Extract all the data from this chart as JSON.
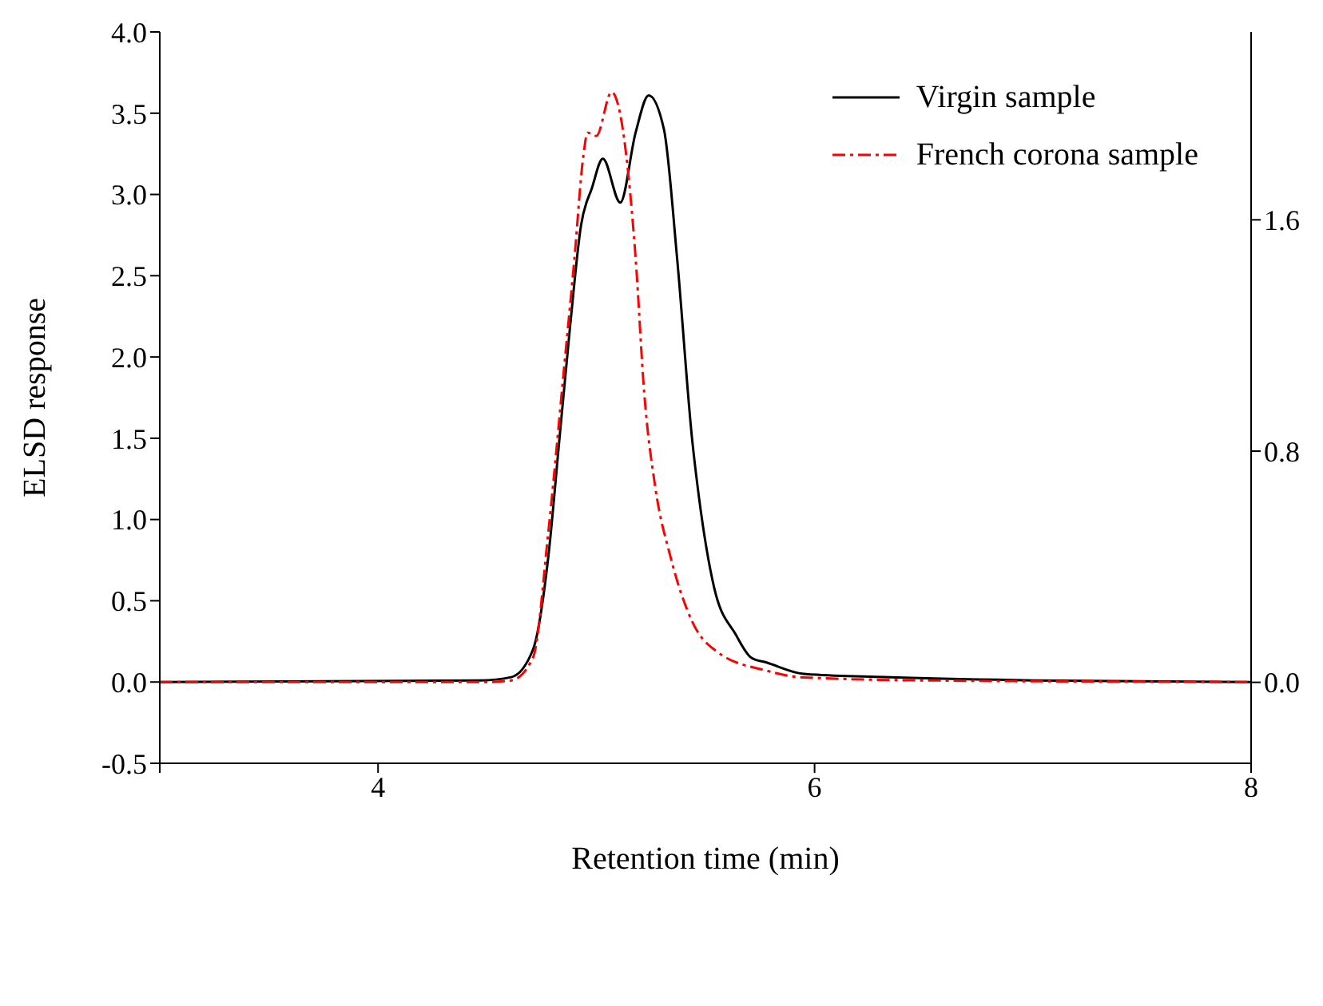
{
  "chart_data": {
    "type": "line",
    "xlabel": "Retention time (min)",
    "ylabel": "ELSD response",
    "x": [
      3,
      4.47,
      4.61,
      4.71,
      4.78,
      4.83,
      4.88,
      4.93,
      4.98,
      5.03,
      5.11,
      5.18,
      5.24,
      5.31,
      5.37,
      5.44,
      5.47,
      5.54,
      5.64,
      5.71,
      5.78,
      5.95,
      6.32,
      7,
      8
    ],
    "series": [
      {
        "name": "Virgin sample",
        "color": "#000000",
        "line_style": "solid",
        "values": [
          0,
          0.01,
          0.03,
          0.2,
          0.77,
          1.48,
          2.19,
          2.81,
          3.04,
          3.22,
          2.95,
          3.38,
          3.61,
          3.4,
          2.61,
          1.48,
          1.14,
          0.58,
          0.29,
          0.15,
          0.12,
          0.05,
          0.03,
          0.01,
          0
        ]
      },
      {
        "name": "French corona sample",
        "color": "#ff0000",
        "line_style": "dashed",
        "x": [
          3,
          4.5,
          4.61,
          4.71,
          4.78,
          4.85,
          4.9,
          4.94,
          4.96,
          5.0,
          5.07,
          5.11,
          5.18,
          5.22,
          5.27,
          5.34,
          5.44,
          5.56,
          5.78,
          5.93,
          6.5,
          8
        ],
        "values": [
          0,
          0,
          0.01,
          0.15,
          0.92,
          1.9,
          2.61,
          3.23,
          3.38,
          3.36,
          3.63,
          3.49,
          2.61,
          1.77,
          1.2,
          0.77,
          0.37,
          0.18,
          0.07,
          0.03,
          0.01,
          0
        ]
      }
    ],
    "xlim": [
      3,
      8
    ],
    "xticks": [
      {
        "value": 3,
        "label": null
      },
      4,
      6,
      8
    ],
    "ylim": [
      -0.5,
      4.0
    ],
    "yticks": [
      -0.5,
      {
        "value": 0,
        "label": "0.0"
      },
      0.5,
      {
        "value": 1,
        "label": "1.0"
      },
      1.5,
      {
        "value": 2,
        "label": "2.0"
      },
      2.5,
      {
        "value": 3,
        "label": "3.0"
      },
      3.5,
      {
        "value": 4,
        "label": "4.0"
      }
    ],
    "y2lim": [
      -0.28,
      2.25
    ],
    "y2ticks": [
      {
        "value": 0,
        "label": "0.0"
      },
      0.8,
      1.6
    ],
    "legend": "top right",
    "grid": false,
    "marker": "none"
  }
}
